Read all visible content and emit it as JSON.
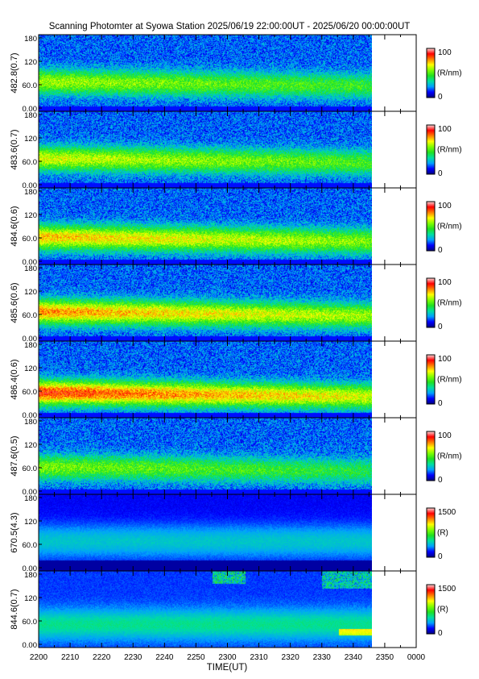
{
  "title": "Scanning Photomter at Syowa Station 2025/06/19 22:00:00UT - 2025/06/20 00:00:00UT",
  "xlabel": "TIME(UT)",
  "x_ticks": [
    "2200",
    "2210",
    "2220",
    "2230",
    "2240",
    "2250",
    "2300",
    "2310",
    "2320",
    "2330",
    "2340",
    "2350",
    "0000"
  ],
  "colors": {
    "spectrum": [
      "#000080",
      "#0000ff",
      "#00a0ff",
      "#00e0a0",
      "#20e020",
      "#80ff00",
      "#ffff00",
      "#ff8000",
      "#ff0000",
      "#ffd8d8"
    ],
    "blank": "#ffffff",
    "axis": "#000000"
  },
  "chart_data": {
    "type": "heatmap",
    "x_range": [
      "2200",
      "0000"
    ],
    "data_end": "2346",
    "y_range": [
      0,
      180
    ],
    "panels": [
      {
        "label": "482.8(0.7)",
        "y_ticks": [
          "180",
          "120",
          "60.0",
          "0.00"
        ],
        "colorbar": {
          "min": "0",
          "max": "100",
          "unit": "(R/nm)"
        },
        "band_center": 65,
        "intensity": 0.45,
        "style": "band"
      },
      {
        "label": "483.6(0.7)",
        "y_ticks": [
          "180",
          "120",
          "60.0",
          "0.00"
        ],
        "colorbar": {
          "min": "0",
          "max": "100",
          "unit": "(R/nm)"
        },
        "band_center": 65,
        "intensity": 0.5,
        "style": "band"
      },
      {
        "label": "484.6(0.6)",
        "y_ticks": [
          "180",
          "120",
          "60.0",
          "0.00"
        ],
        "colorbar": {
          "min": "0",
          "max": "100",
          "unit": "(R/nm)"
        },
        "band_center": 60,
        "intensity": 0.6,
        "style": "band"
      },
      {
        "label": "485.6(0.6)",
        "y_ticks": [
          "180",
          "120",
          "60.0",
          "0.00"
        ],
        "colorbar": {
          "min": "0",
          "max": "100",
          "unit": "(R/nm)"
        },
        "band_center": 65,
        "intensity": 0.65,
        "style": "band"
      },
      {
        "label": "486.4(0.6)",
        "y_ticks": [
          "180",
          "120",
          "60.0",
          "0.00"
        ],
        "colorbar": {
          "min": "0",
          "max": "100",
          "unit": "(R/nm)"
        },
        "band_center": 55,
        "intensity": 0.75,
        "style": "band"
      },
      {
        "label": "487.6(0.5)",
        "y_ticks": [
          "180",
          "120",
          "60.0",
          "0.00"
        ],
        "colorbar": {
          "min": "0",
          "max": "100",
          "unit": "(R/nm)"
        },
        "band_center": 60,
        "intensity": 0.4,
        "style": "band"
      },
      {
        "label": "670.5(4.3)",
        "y_ticks": [
          "180",
          "120",
          "60.0",
          "0.00"
        ],
        "colorbar": {
          "min": "0",
          "max": "1500",
          "unit": "(R)"
        },
        "band_center": 70,
        "intensity": 0.25,
        "style": "dark"
      },
      {
        "label": "844.6(0.7)",
        "y_ticks": [
          "180",
          "120",
          "60.0",
          "0.00"
        ],
        "colorbar": {
          "min": "0",
          "max": "1500",
          "unit": "(R)"
        },
        "band_center": 60,
        "intensity": 0.3,
        "style": "aurora"
      }
    ]
  }
}
